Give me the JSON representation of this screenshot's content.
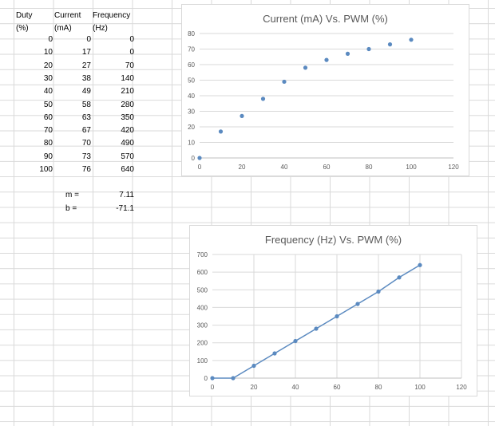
{
  "table": {
    "headers": [
      {
        "line1": "Duty",
        "line2": "(%)"
      },
      {
        "line1": "Current",
        "line2": "(mA)"
      },
      {
        "line1": "Frequency",
        "line2": "(Hz)"
      }
    ],
    "rows": [
      [
        "0",
        "0",
        "0"
      ],
      [
        "10",
        "17",
        "0"
      ],
      [
        "20",
        "27",
        "70"
      ],
      [
        "30",
        "38",
        "140"
      ],
      [
        "40",
        "49",
        "210"
      ],
      [
        "50",
        "58",
        "280"
      ],
      [
        "60",
        "63",
        "350"
      ],
      [
        "70",
        "67",
        "420"
      ],
      [
        "80",
        "70",
        "490"
      ],
      [
        "90",
        "73",
        "570"
      ],
      [
        "100",
        "76",
        "640"
      ]
    ]
  },
  "fit": {
    "m_label": "m =",
    "m_value": "7.11",
    "b_label": "b =",
    "b_value": "-71.1"
  },
  "chart_data": [
    {
      "type": "scatter",
      "title": "Current (mA) Vs. PWM (%)",
      "xlim": [
        0,
        120
      ],
      "ylim": [
        0,
        80
      ],
      "xticks": [
        0,
        20,
        40,
        60,
        80,
        100,
        120
      ],
      "yticks": [
        0,
        10,
        20,
        30,
        40,
        50,
        60,
        70,
        80
      ],
      "grid": "horizontal",
      "line": false,
      "marker_color": "#5b8ac0",
      "x": [
        0,
        10,
        20,
        30,
        40,
        50,
        60,
        70,
        80,
        90,
        100
      ],
      "y": [
        0,
        17,
        27,
        38,
        49,
        58,
        63,
        67,
        70,
        73,
        76
      ]
    },
    {
      "type": "line",
      "title": "Frequency (Hz) Vs. PWM (%)",
      "xlim": [
        0,
        120
      ],
      "ylim": [
        0,
        700
      ],
      "xticks": [
        0,
        20,
        40,
        60,
        80,
        100,
        120
      ],
      "yticks": [
        0,
        100,
        200,
        300,
        400,
        500,
        600,
        700
      ],
      "grid": "both",
      "line": true,
      "marker_color": "#5b8ac0",
      "x": [
        0,
        10,
        20,
        30,
        40,
        50,
        60,
        70,
        80,
        90,
        100
      ],
      "y": [
        0,
        0,
        70,
        140,
        210,
        280,
        350,
        420,
        490,
        570,
        640
      ]
    }
  ]
}
